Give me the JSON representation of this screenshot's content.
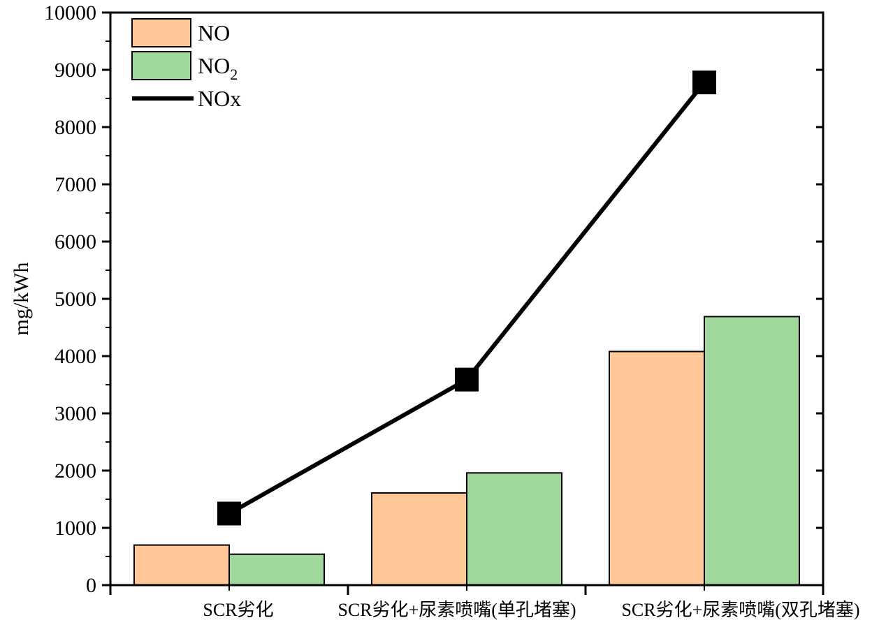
{
  "chart_data": {
    "type": "bar",
    "categories": [
      "SCR劣化",
      "SCR劣化+尿素喷嘴(单孔堵塞)",
      "SCR劣化+尿素喷嘴(双孔堵塞)"
    ],
    "series": [
      {
        "name": "NO",
        "kind": "bar",
        "color": "#ffc896",
        "values": [
          700,
          1610,
          4080
        ]
      },
      {
        "name": "NO2",
        "name_main": "NO",
        "name_sub": "2",
        "kind": "bar",
        "color": "#a0d79b",
        "values": [
          540,
          1960,
          4690
        ]
      },
      {
        "name": "NOx",
        "kind": "line",
        "color": "#000000",
        "marker": "square",
        "values": [
          1250,
          3590,
          8780
        ]
      }
    ],
    "xlabel": "",
    "ylabel": "mg/kWh",
    "ylim": [
      0,
      10000
    ],
    "yticks": [
      0,
      1000,
      2000,
      3000,
      4000,
      5000,
      6000,
      7000,
      8000,
      9000,
      10000
    ],
    "legend_position": "top-left",
    "grid": false
  }
}
